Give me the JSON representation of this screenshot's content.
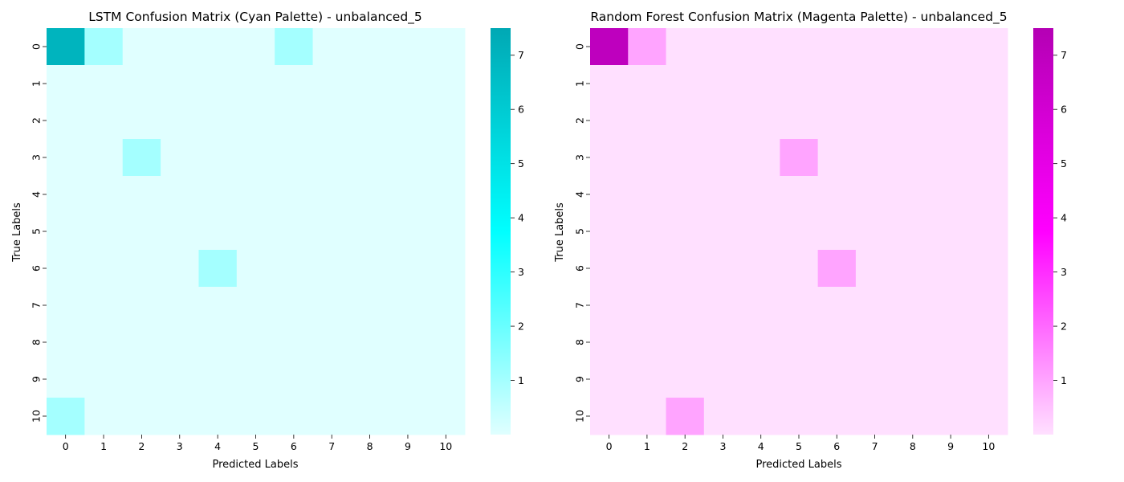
{
  "chart_data": [
    {
      "type": "heatmap",
      "title": "LSTM Confusion Matrix (Cyan Palette) - unbalanced_5",
      "xlabel": "Predicted Labels",
      "ylabel": "True Labels",
      "x_ticks": [
        "0",
        "1",
        "2",
        "3",
        "4",
        "5",
        "6",
        "7",
        "8",
        "9",
        "10"
      ],
      "y_ticks": [
        "0",
        "1",
        "2",
        "3",
        "4",
        "5",
        "6",
        "7",
        "8",
        "9",
        "10"
      ],
      "colorbar": {
        "range": [
          0,
          7.5
        ],
        "ticks": [
          "1",
          "2",
          "3",
          "4",
          "5",
          "6",
          "7"
        ],
        "low_color": "#e0ffff",
        "mid_color": "#00ffff",
        "high_color": "#00a8b4"
      },
      "values": [
        [
          7,
          1,
          0,
          0,
          0,
          0,
          1,
          0,
          0,
          0,
          0
        ],
        [
          0,
          0,
          0,
          0,
          0,
          0,
          0,
          0,
          0,
          0,
          0
        ],
        [
          0,
          0,
          0,
          0,
          0,
          0,
          0,
          0,
          0,
          0,
          0
        ],
        [
          0,
          0,
          1,
          0,
          0,
          0,
          0,
          0,
          0,
          0,
          0
        ],
        [
          0,
          0,
          0,
          0,
          0,
          0,
          0,
          0,
          0,
          0,
          0
        ],
        [
          0,
          0,
          0,
          0,
          0,
          0,
          0,
          0,
          0,
          0,
          0
        ],
        [
          0,
          0,
          0,
          0,
          1,
          0,
          0,
          0,
          0,
          0,
          0
        ],
        [
          0,
          0,
          0,
          0,
          0,
          0,
          0,
          0,
          0,
          0,
          0
        ],
        [
          0,
          0,
          0,
          0,
          0,
          0,
          0,
          0,
          0,
          0,
          0
        ],
        [
          0,
          0,
          0,
          0,
          0,
          0,
          0,
          0,
          0,
          0,
          0
        ],
        [
          1,
          0,
          0,
          0,
          0,
          0,
          0,
          0,
          0,
          0,
          0
        ]
      ]
    },
    {
      "type": "heatmap",
      "title": "Random Forest Confusion Matrix (Magenta Palette) - unbalanced_5",
      "xlabel": "Predicted Labels",
      "ylabel": "True Labels",
      "x_ticks": [
        "0",
        "1",
        "2",
        "3",
        "4",
        "5",
        "6",
        "7",
        "8",
        "9",
        "10"
      ],
      "y_ticks": [
        "0",
        "1",
        "2",
        "3",
        "4",
        "5",
        "6",
        "7",
        "8",
        "9",
        "10"
      ],
      "colorbar": {
        "range": [
          0,
          7.5
        ],
        "ticks": [
          "1",
          "2",
          "3",
          "4",
          "5",
          "6",
          "7"
        ],
        "low_color": "#ffe0ff",
        "mid_color": "#ff00ff",
        "high_color": "#b400b4"
      },
      "values": [
        [
          7,
          1,
          0,
          0,
          0,
          0,
          0,
          0,
          0,
          0,
          0
        ],
        [
          0,
          0,
          0,
          0,
          0,
          0,
          0,
          0,
          0,
          0,
          0
        ],
        [
          0,
          0,
          0,
          0,
          0,
          0,
          0,
          0,
          0,
          0,
          0
        ],
        [
          0,
          0,
          0,
          0,
          0,
          1,
          0,
          0,
          0,
          0,
          0
        ],
        [
          0,
          0,
          0,
          0,
          0,
          0,
          0,
          0,
          0,
          0,
          0
        ],
        [
          0,
          0,
          0,
          0,
          0,
          0,
          0,
          0,
          0,
          0,
          0
        ],
        [
          0,
          0,
          0,
          0,
          0,
          0,
          1,
          0,
          0,
          0,
          0
        ],
        [
          0,
          0,
          0,
          0,
          0,
          0,
          0,
          0,
          0,
          0,
          0
        ],
        [
          0,
          0,
          0,
          0,
          0,
          0,
          0,
          0,
          0,
          0,
          0
        ],
        [
          0,
          0,
          0,
          0,
          0,
          0,
          0,
          0,
          0,
          0,
          0
        ],
        [
          0,
          0,
          1,
          0,
          0,
          0,
          0,
          0,
          0,
          0,
          0
        ]
      ]
    }
  ]
}
